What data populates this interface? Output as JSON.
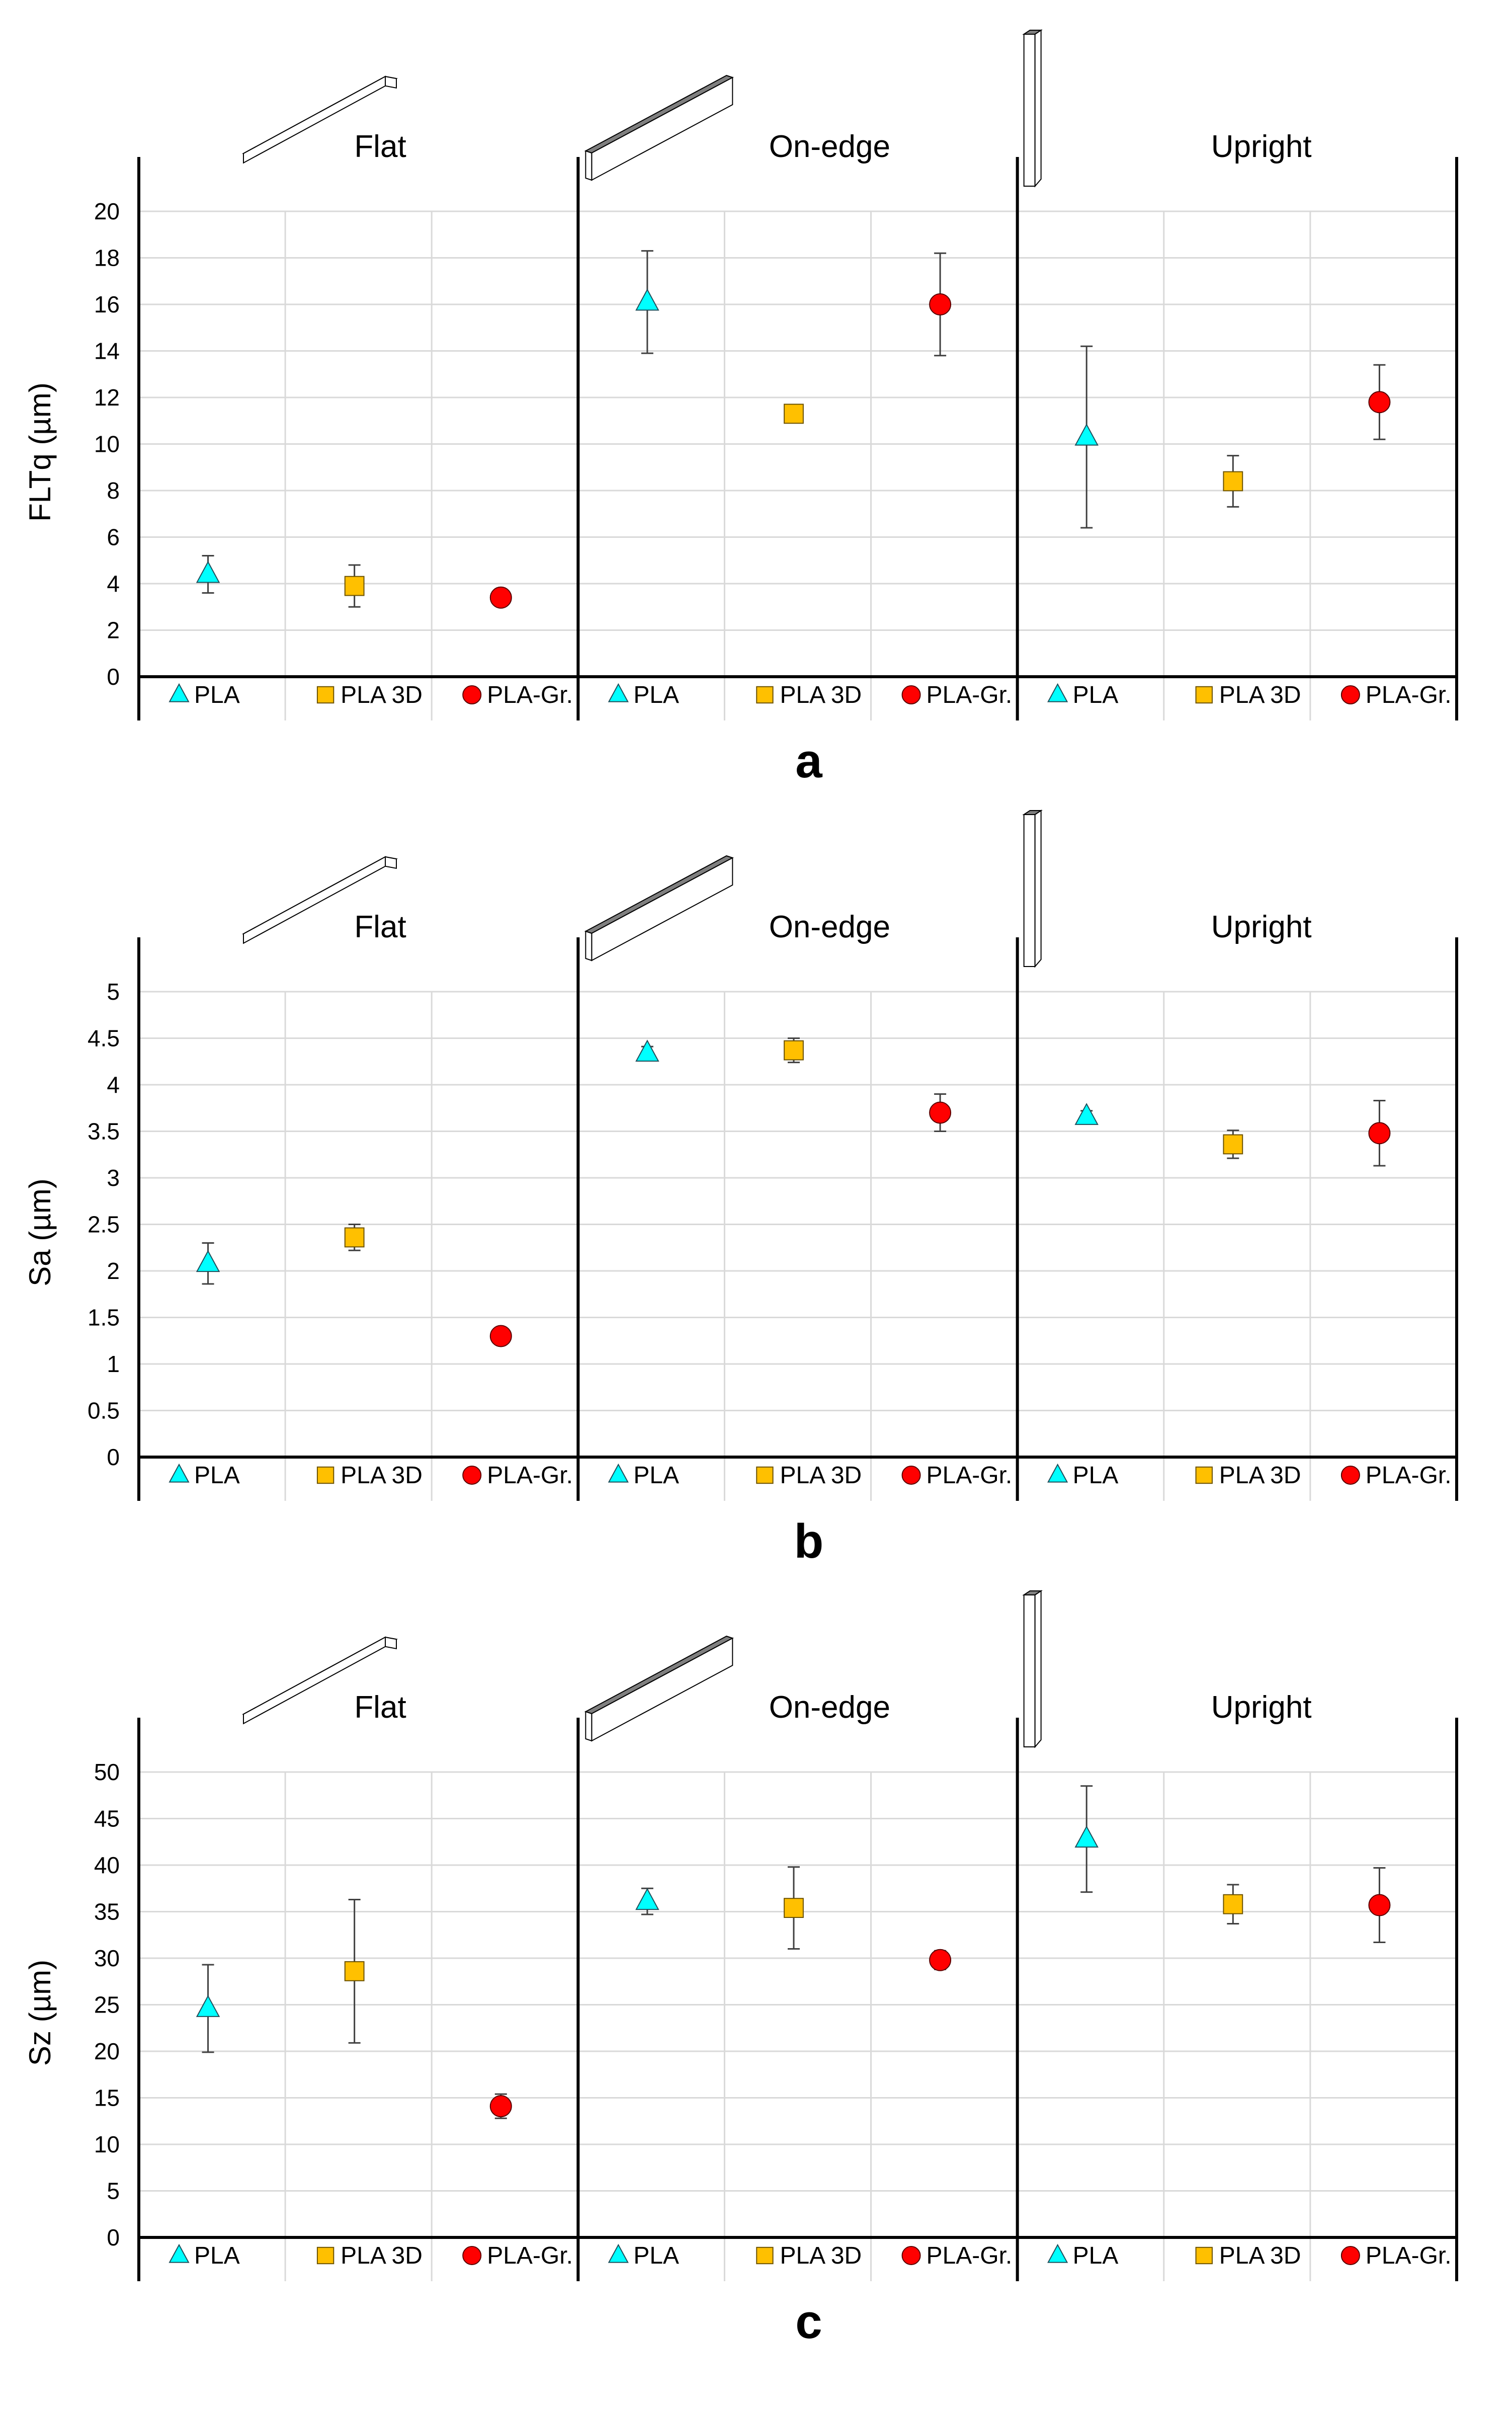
{
  "groups": [
    "Flat",
    "On-edge",
    "Upright"
  ],
  "legend": [
    {
      "label": "PLA",
      "marker": "triangle",
      "color": "#00FFFF"
    },
    {
      "label": "PLA 3D",
      "marker": "square",
      "color": "#FFC000"
    },
    {
      "label": "PLA-Gr.",
      "marker": "circle",
      "color": "#FF0000"
    }
  ],
  "colors": {
    "axis": "#000000",
    "grid": "#D9D9D9",
    "errorbar": "#404040",
    "bar_face": "#FFFFFF",
    "bar_top": "#7F7F7F"
  },
  "chart_data": [
    {
      "type": "scatter",
      "panel_label": "a",
      "title": "",
      "xlabel": "",
      "ylabel": "FLTq (µm)",
      "ylim": [
        0,
        20
      ],
      "yticks": [
        0,
        2,
        4,
        6,
        8,
        10,
        12,
        14,
        16,
        18,
        20
      ],
      "yticklabels": [
        "0",
        "2",
        "4",
        "6",
        "8",
        "10",
        "12",
        "14",
        "16",
        "18",
        "20"
      ],
      "groups": [
        "Flat",
        "On-edge",
        "Upright"
      ],
      "categories": [
        "PLA",
        "PLA 3D",
        "PLA-Gr."
      ],
      "series": [
        {
          "name": "PLA",
          "values": [
            4.4,
            16.1,
            10.3
          ],
          "errors": [
            0.8,
            2.2,
            3.9
          ]
        },
        {
          "name": "PLA 3D",
          "values": [
            3.9,
            11.3,
            8.4
          ],
          "errors": [
            0.9,
            0.3,
            1.1
          ]
        },
        {
          "name": "PLA-Gr.",
          "values": [
            3.4,
            16.0,
            11.8
          ],
          "errors": [
            0.3,
            2.2,
            1.6
          ]
        }
      ],
      "grid": true
    },
    {
      "type": "scatter",
      "panel_label": "b",
      "title": "",
      "xlabel": "",
      "ylabel": "Sa (µm)",
      "ylim": [
        0,
        5
      ],
      "yticks": [
        0,
        0.5,
        1,
        1.5,
        2,
        2.5,
        3,
        3.5,
        4,
        4.5,
        5
      ],
      "yticklabels": [
        "0",
        "0.5",
        "1",
        "1.5",
        "2",
        "2.5",
        "3",
        "3.5",
        "4",
        "4.5",
        "5"
      ],
      "groups": [
        "Flat",
        "On-edge",
        "Upright"
      ],
      "categories": [
        "PLA",
        "PLA 3D",
        "PLA-Gr."
      ],
      "series": [
        {
          "name": "PLA",
          "values": [
            2.08,
            4.34,
            3.66
          ],
          "errors": [
            0.22,
            0.07,
            0.06
          ]
        },
        {
          "name": "PLA 3D",
          "values": [
            2.36,
            4.37,
            3.36
          ],
          "errors": [
            0.14,
            0.13,
            0.15
          ]
        },
        {
          "name": "PLA-Gr.",
          "values": [
            1.3,
            3.7,
            3.48
          ],
          "errors": [
            0.06,
            0.2,
            0.35
          ]
        }
      ],
      "grid": true
    },
    {
      "type": "scatter",
      "panel_label": "c",
      "title": "",
      "xlabel": "",
      "ylabel": "Sz (µm)",
      "ylim": [
        0,
        50
      ],
      "yticks": [
        0,
        5,
        10,
        15,
        20,
        25,
        30,
        35,
        40,
        45,
        50
      ],
      "yticklabels": [
        "0",
        "5",
        "10",
        "15",
        "20",
        "25",
        "30",
        "35",
        "40",
        "45",
        "50"
      ],
      "groups": [
        "Flat",
        "On-edge",
        "Upright"
      ],
      "categories": [
        "PLA",
        "PLA 3D",
        "PLA-Gr."
      ],
      "series": [
        {
          "name": "PLA",
          "values": [
            24.6,
            36.1,
            42.8
          ],
          "errors": [
            4.7,
            1.4,
            5.7
          ]
        },
        {
          "name": "PLA 3D",
          "values": [
            28.6,
            35.4,
            35.8
          ],
          "errors": [
            7.7,
            4.4,
            2.1
          ]
        },
        {
          "name": "PLA-Gr.",
          "values": [
            14.1,
            29.8,
            35.7
          ],
          "errors": [
            1.3,
            1.0,
            4.0
          ]
        }
      ],
      "grid": true
    }
  ]
}
